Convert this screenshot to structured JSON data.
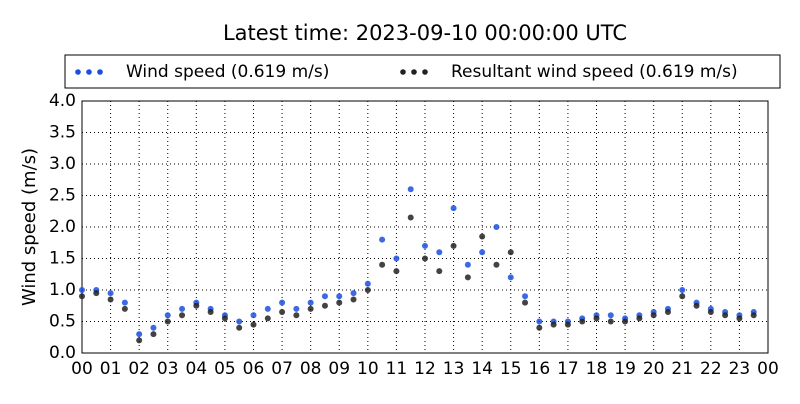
{
  "chart_data": {
    "type": "scatter",
    "title": "Latest time: 2023-09-10 00:00:00 UTC",
    "y_label": "Wind speed (m/s)",
    "x": [
      0,
      0.5,
      1,
      1.5,
      2,
      2.5,
      3,
      3.5,
      4,
      4.5,
      5,
      5.5,
      6,
      6.5,
      7,
      7.5,
      8,
      8.5,
      9,
      9.5,
      10,
      10.5,
      11,
      11.5,
      12,
      12.5,
      13,
      13.5,
      14,
      14.5,
      15,
      15.5,
      16,
      16.5,
      17,
      17.5,
      18,
      18.5,
      19,
      19.5,
      20,
      20.5,
      21,
      21.5,
      22,
      22.5,
      23,
      23.5
    ],
    "series": [
      {
        "name": "Wind speed (0.619 m/s)",
        "color": "#1a4fe0",
        "values": [
          1.0,
          1.0,
          0.95,
          0.8,
          0.3,
          0.4,
          0.6,
          0.7,
          0.8,
          0.7,
          0.6,
          0.5,
          0.6,
          0.7,
          0.8,
          0.7,
          0.8,
          0.9,
          0.9,
          0.95,
          1.1,
          1.8,
          1.5,
          2.6,
          1.7,
          1.6,
          2.3,
          1.4,
          1.6,
          2.0,
          1.2,
          0.9,
          0.5,
          0.5,
          0.5,
          0.55,
          0.6,
          0.6,
          0.55,
          0.6,
          0.65,
          0.7,
          1.0,
          0.8,
          0.7,
          0.65,
          0.6,
          0.65
        ]
      },
      {
        "name": "Resultant wind speed (0.619 m/s)",
        "color": "#222222",
        "values": [
          0.9,
          0.95,
          0.85,
          0.7,
          0.2,
          0.3,
          0.5,
          0.6,
          0.75,
          0.65,
          0.55,
          0.4,
          0.45,
          0.55,
          0.65,
          0.6,
          0.7,
          0.75,
          0.8,
          0.85,
          1.0,
          1.4,
          1.3,
          2.15,
          1.5,
          1.3,
          1.7,
          1.2,
          1.85,
          1.4,
          1.6,
          0.8,
          0.4,
          0.45,
          0.45,
          0.5,
          0.55,
          0.5,
          0.5,
          0.55,
          0.6,
          0.65,
          0.9,
          0.75,
          0.65,
          0.6,
          0.55,
          0.6
        ]
      }
    ],
    "xlim": [
      0,
      24
    ],
    "xticks": [
      {
        "value": 0,
        "label": "00"
      },
      {
        "value": 1,
        "label": "01"
      },
      {
        "value": 2,
        "label": "02"
      },
      {
        "value": 3,
        "label": "03"
      },
      {
        "value": 4,
        "label": "04"
      },
      {
        "value": 5,
        "label": "05"
      },
      {
        "value": 6,
        "label": "06"
      },
      {
        "value": 7,
        "label": "07"
      },
      {
        "value": 8,
        "label": "08"
      },
      {
        "value": 9,
        "label": "09"
      },
      10,
      11,
      12,
      13,
      14,
      15,
      16,
      17,
      18,
      19,
      20,
      21,
      22,
      23,
      {
        "value": 24,
        "label": "00"
      }
    ],
    "ylim": [
      0,
      4
    ],
    "yticks": [
      {
        "value": 0,
        "label": "0.0"
      },
      0.5,
      {
        "value": 1,
        "label": "1.0"
      },
      1.5,
      {
        "value": 2,
        "label": "2.0"
      },
      2.5,
      {
        "value": 3,
        "label": "3.0"
      },
      3.5,
      {
        "value": 4,
        "label": "4.0"
      }
    ],
    "grid": true,
    "legend": "top"
  }
}
